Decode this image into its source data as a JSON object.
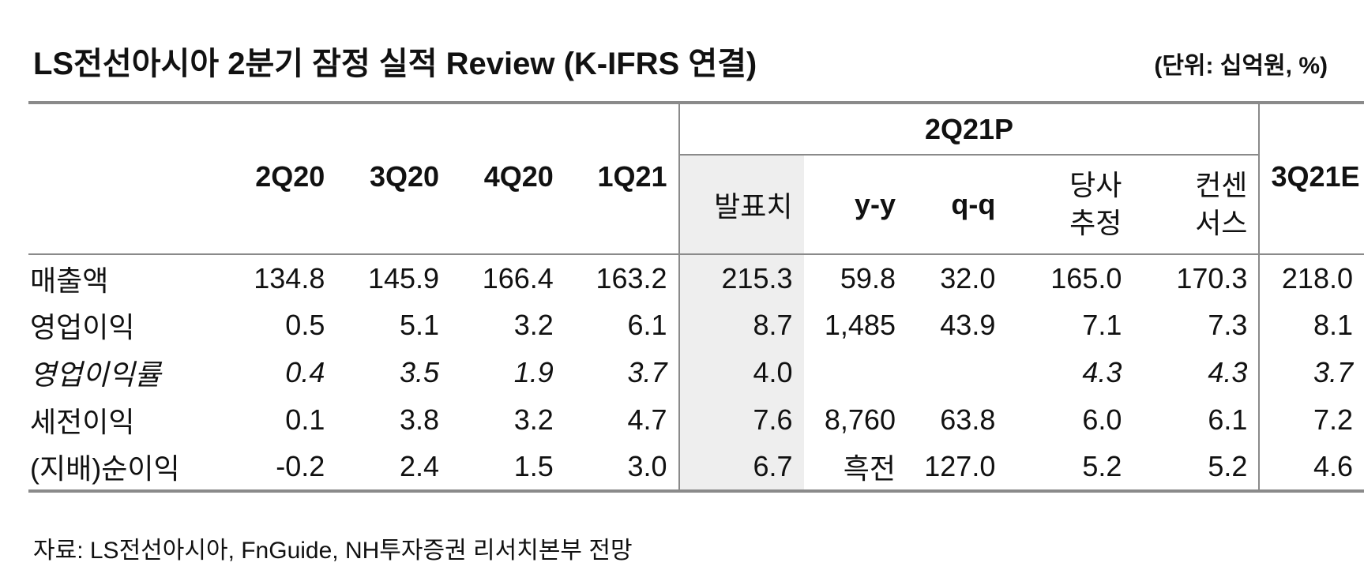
{
  "title": "LS전선아시아 2분기 잠정 실적 Review (K-IFRS 연결)",
  "unit": "(단위: 십억원, %)",
  "header": {
    "group": "2Q21P",
    "periods": [
      "2Q20",
      "3Q20",
      "4Q20",
      "1Q21"
    ],
    "sub": {
      "announced": "발표치",
      "yy": "y-y",
      "qq": "q-q",
      "estimate_1": "당사",
      "estimate_2": "추정",
      "consensus_1": "컨센",
      "consensus_2": "서스"
    },
    "next": "3Q21E"
  },
  "rows": [
    {
      "label": "매출액",
      "italic": false,
      "values": [
        "134.8",
        "145.9",
        "166.4",
        "163.2",
        "215.3",
        "59.8",
        "32.0",
        "165.0",
        "170.3",
        "218.0"
      ]
    },
    {
      "label": "영업이익",
      "italic": false,
      "values": [
        "0.5",
        "5.1",
        "3.2",
        "6.1",
        "8.7",
        "1,485",
        "43.9",
        "7.1",
        "7.3",
        "8.1"
      ]
    },
    {
      "label": "영업이익률",
      "italic": true,
      "values": [
        "0.4",
        "3.5",
        "1.9",
        "3.7",
        "4.0",
        "",
        "",
        "4.3",
        "4.3",
        "3.7"
      ]
    },
    {
      "label": "세전이익",
      "italic": false,
      "values": [
        "0.1",
        "3.8",
        "3.2",
        "4.7",
        "7.6",
        "8,760",
        "63.8",
        "6.0",
        "6.1",
        "7.2"
      ]
    },
    {
      "label": "(지배)순이익",
      "italic": false,
      "values": [
        "-0.2",
        "2.4",
        "1.5",
        "3.0",
        "6.7",
        "흑전",
        "127.0",
        "5.2",
        "5.2",
        "4.6"
      ]
    }
  ],
  "source": "자료: LS전선아시아, FnGuide, NH투자증권 리서치본부 전망"
}
